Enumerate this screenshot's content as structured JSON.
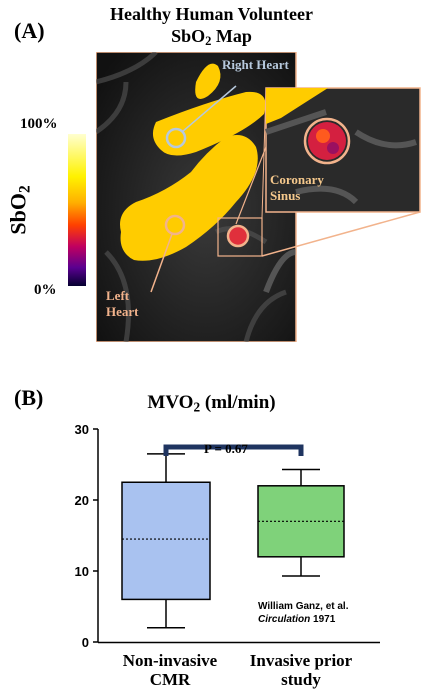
{
  "panel_a": {
    "label": "(A)",
    "title_line1": "Healthy Human Volunteer",
    "title_line2_prefix": "SbO",
    "title_line2_sub": "2",
    "title_line2_suffix": " Map",
    "colorbar": {
      "top_label": "100%",
      "bottom_label": "0%",
      "axis_prefix": "SbO",
      "axis_sub": "2"
    },
    "annotations": {
      "right_heart": "Right Heart",
      "left_heart_1": "Left",
      "left_heart_2": "Heart",
      "coronary_1": "Coronary",
      "coronary_2": "Sinus"
    },
    "colors": {
      "ring_right_heart": "#b7c9dd",
      "ring_other": "#f2b38c",
      "blood_yellow": "#ffcc00"
    }
  },
  "panel_b": {
    "label": "(B)",
    "title_prefix": "MVO",
    "title_sub": "2",
    "title_suffix": " (ml/min)",
    "p_value": "P = 0.67",
    "citation_line1": "William Ganz, et al.",
    "citation_line2": "Circulation",
    "citation_line3": " 1971"
  },
  "chart_data": {
    "type": "boxplot",
    "ylim": [
      0,
      30
    ],
    "yticks": [
      0,
      10,
      20,
      30
    ],
    "categories": [
      "Non-invasive CMR",
      "Invasive prior study"
    ],
    "category_lines": [
      [
        "Non-invasive",
        "CMR"
      ],
      [
        "Invasive prior",
        "study"
      ]
    ],
    "boxes": [
      {
        "whisker_low": 2.0,
        "q1": 6.0,
        "median": 14.5,
        "q3": 22.5,
        "whisker_high": 26.5,
        "color": "#a9c2f0"
      },
      {
        "whisker_low": 9.3,
        "q1": 12.0,
        "median": 17.0,
        "q3": 22.0,
        "whisker_high": 24.3,
        "color": "#7fd27a"
      }
    ],
    "bracket_color": "#1f3460"
  }
}
